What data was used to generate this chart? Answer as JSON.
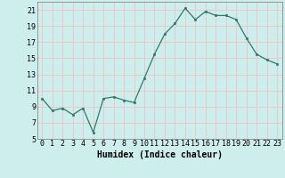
{
  "x": [
    0,
    1,
    2,
    3,
    4,
    5,
    6,
    7,
    8,
    9,
    10,
    11,
    12,
    13,
    14,
    15,
    16,
    17,
    18,
    19,
    20,
    21,
    22,
    23
  ],
  "y": [
    10.0,
    8.5,
    8.8,
    8.0,
    8.8,
    5.8,
    10.0,
    10.2,
    9.8,
    9.5,
    12.5,
    15.5,
    18.0,
    19.3,
    21.2,
    19.8,
    20.8,
    20.3,
    20.3,
    19.8,
    17.5,
    15.5,
    14.8,
    14.3
  ],
  "xlabel": "Humidex (Indice chaleur)",
  "xlim": [
    -0.5,
    23.5
  ],
  "ylim": [
    5,
    22
  ],
  "yticks": [
    5,
    7,
    9,
    11,
    13,
    15,
    17,
    19,
    21
  ],
  "xticks": [
    0,
    1,
    2,
    3,
    4,
    5,
    6,
    7,
    8,
    9,
    10,
    11,
    12,
    13,
    14,
    15,
    16,
    17,
    18,
    19,
    20,
    21,
    22,
    23
  ],
  "line_color": "#2d7b6a",
  "bg_color": "#cdeeed",
  "grid_color": "#e8c8c8",
  "tick_fontsize": 6.0,
  "label_fontsize": 7.0
}
